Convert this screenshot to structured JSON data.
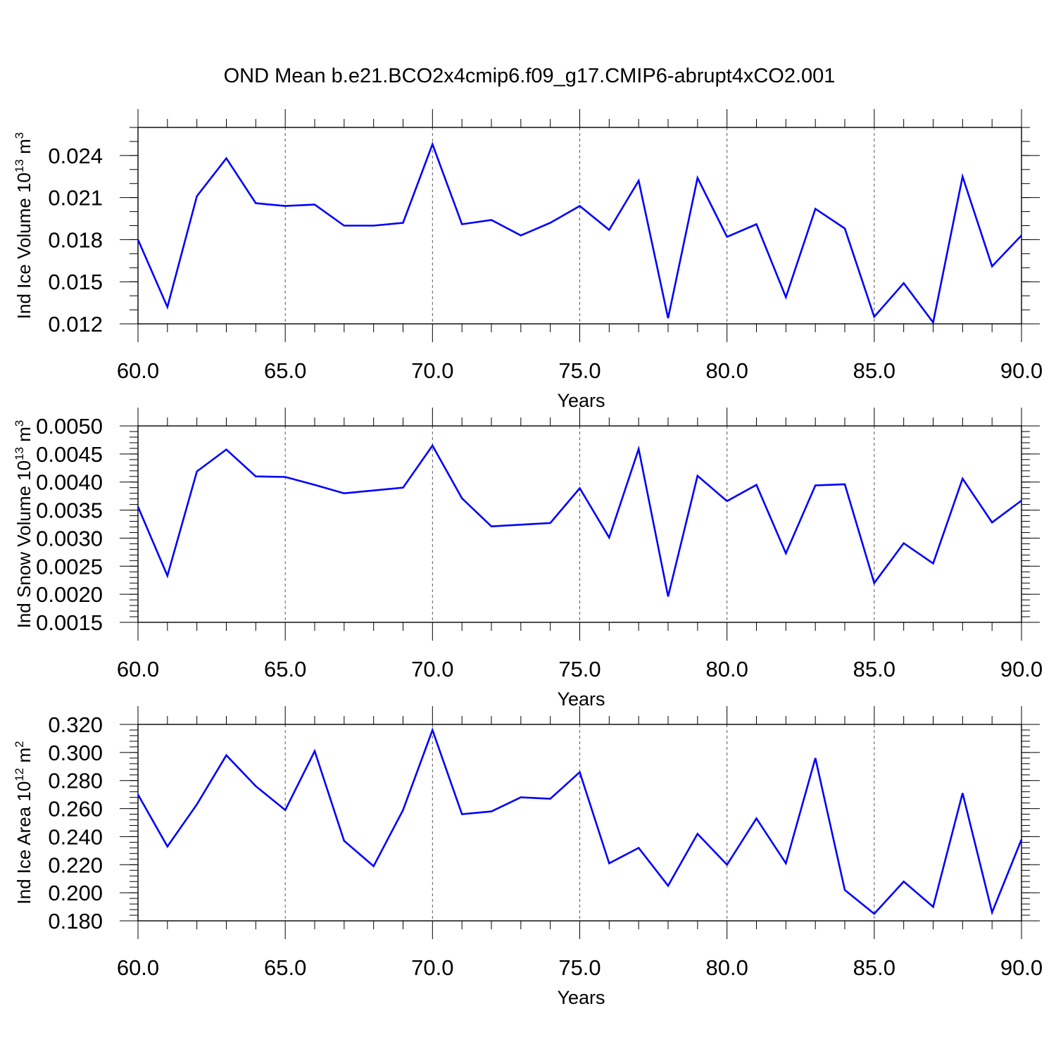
{
  "title": "OND Mean b.e21.BCO2x4cmip6.f09_g17.CMIP6-abrupt4xCO2.001",
  "line_color": "#0000ff",
  "chart_data": [
    {
      "type": "line",
      "ylabel_main": "Ind Ice Volume 10",
      "ylabel_exp": "13",
      "ylabel_unit": " m",
      "ylabel_unit_exp": "3",
      "xlabel": "Years",
      "xlim": [
        60,
        90
      ],
      "ylim": [
        0.012,
        0.026
      ],
      "yticks": [
        "0.012",
        "0.015",
        "0.018",
        "0.021",
        "0.024"
      ],
      "ytick_values": [
        0.012,
        0.015,
        0.018,
        0.021,
        0.024
      ],
      "yminor_step": 0.001,
      "xticks": [
        "60.0",
        "65.0",
        "70.0",
        "75.0",
        "80.0",
        "85.0",
        "90.0"
      ],
      "xtick_values": [
        60,
        65,
        70,
        75,
        80,
        85,
        90
      ],
      "x": [
        60,
        61,
        62,
        63,
        64,
        65,
        66,
        67,
        68,
        69,
        70,
        71,
        72,
        73,
        74,
        75,
        76,
        77,
        78,
        79,
        80,
        81,
        82,
        83,
        84,
        85,
        86,
        87,
        88,
        89,
        90
      ],
      "series": [
        {
          "values": [
            0.018,
            0.0132,
            0.0211,
            0.0238,
            0.0206,
            0.0204,
            0.0205,
            0.019,
            0.019,
            0.0192,
            0.0248,
            0.0191,
            0.0194,
            0.0183,
            0.0192,
            0.0204,
            0.0187,
            0.0222,
            0.0124,
            0.0224,
            0.0182,
            0.0191,
            0.0139,
            0.0202,
            0.0188,
            0.0125,
            0.0149,
            0.0121,
            0.0225,
            0.0161,
            0.0183
          ]
        }
      ]
    },
    {
      "type": "line",
      "ylabel_main": "Ind Snow Volume 10",
      "ylabel_exp": "13",
      "ylabel_unit": " m",
      "ylabel_unit_exp": "3",
      "xlabel": "Years",
      "xlim": [
        60,
        90
      ],
      "ylim": [
        0.0015,
        0.005
      ],
      "yticks": [
        "0.0015",
        "0.0020",
        "0.0025",
        "0.0030",
        "0.0035",
        "0.0040",
        "0.0045",
        "0.0050"
      ],
      "ytick_values": [
        0.0015,
        0.002,
        0.0025,
        0.003,
        0.0035,
        0.004,
        0.0045,
        0.005
      ],
      "yminor_step": 0.0001,
      "xticks": [
        "60.0",
        "65.0",
        "70.0",
        "75.0",
        "80.0",
        "85.0",
        "90.0"
      ],
      "xtick_values": [
        60,
        65,
        70,
        75,
        80,
        85,
        90
      ],
      "x": [
        60,
        61,
        62,
        63,
        64,
        65,
        66,
        67,
        68,
        69,
        70,
        71,
        72,
        73,
        74,
        75,
        76,
        77,
        78,
        79,
        80,
        81,
        82,
        83,
        84,
        85,
        86,
        87,
        88,
        89,
        90
      ],
      "series": [
        {
          "values": [
            0.00356,
            0.00233,
            0.00419,
            0.00458,
            0.0041,
            0.00409,
            0.00395,
            0.0038,
            0.00385,
            0.0039,
            0.00465,
            0.00371,
            0.00321,
            0.00324,
            0.00327,
            0.00389,
            0.00301,
            0.00459,
            0.00196,
            0.00411,
            0.00366,
            0.00395,
            0.00273,
            0.00394,
            0.00396,
            0.0022,
            0.00291,
            0.00255,
            0.00406,
            0.00328,
            0.00367
          ]
        }
      ]
    },
    {
      "type": "line",
      "ylabel_main": "Ind Ice Area 10",
      "ylabel_exp": "12",
      "ylabel_unit": " m",
      "ylabel_unit_exp": "2",
      "xlabel": "Years",
      "xlim": [
        60,
        90
      ],
      "ylim": [
        0.18,
        0.32
      ],
      "yticks": [
        "0.180",
        "0.200",
        "0.220",
        "0.240",
        "0.260",
        "0.280",
        "0.300",
        "0.320"
      ],
      "ytick_values": [
        0.18,
        0.2,
        0.22,
        0.24,
        0.26,
        0.28,
        0.3,
        0.32
      ],
      "yminor_step": 0.004,
      "xticks": [
        "60.0",
        "65.0",
        "70.0",
        "75.0",
        "80.0",
        "85.0",
        "90.0"
      ],
      "xtick_values": [
        60,
        65,
        70,
        75,
        80,
        85,
        90
      ],
      "x": [
        60,
        61,
        62,
        63,
        64,
        65,
        66,
        67,
        68,
        69,
        70,
        71,
        72,
        73,
        74,
        75,
        76,
        77,
        78,
        79,
        80,
        81,
        82,
        83,
        84,
        85,
        86,
        87,
        88,
        89,
        90
      ],
      "series": [
        {
          "values": [
            0.27,
            0.233,
            0.263,
            0.298,
            0.276,
            0.259,
            0.301,
            0.237,
            0.219,
            0.259,
            0.316,
            0.256,
            0.258,
            0.268,
            0.267,
            0.286,
            0.221,
            0.232,
            0.205,
            0.242,
            0.22,
            0.253,
            0.221,
            0.296,
            0.202,
            0.185,
            0.208,
            0.19,
            0.271,
            0.186,
            0.238
          ]
        }
      ]
    }
  ]
}
